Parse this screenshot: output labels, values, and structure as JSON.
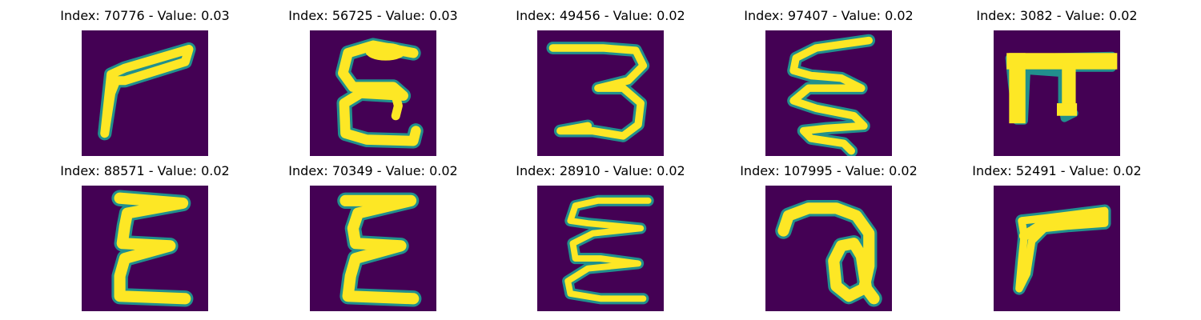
{
  "figure": {
    "colormap": {
      "background": "#440154",
      "edge": "#21908d",
      "mid": "#5ec962",
      "stroke": "#fde725"
    },
    "panels": [
      {
        "index": "70776",
        "value": "0.03",
        "title": "Index: 70776 - Value: 0.03",
        "glyph": "gamma-like stroke"
      },
      {
        "index": "56725",
        "value": "0.03",
        "title": "Index: 56725 - Value: 0.03",
        "glyph": "epsilon E"
      },
      {
        "index": "49456",
        "value": "0.02",
        "title": "Index: 49456 - Value: 0.02",
        "glyph": "3 shape"
      },
      {
        "index": "97407",
        "value": "0.02",
        "title": "Index: 97407 - Value: 0.02",
        "glyph": "zigzag sigma"
      },
      {
        "index": "3082",
        "value": "0.02",
        "title": "Index: 3082 - Value: 0.02",
        "glyph": "pi shape"
      },
      {
        "index": "88571",
        "value": "0.02",
        "title": "Index: 88571 - Value: 0.02",
        "glyph": "sigma shape"
      },
      {
        "index": "70349",
        "value": "0.02",
        "title": "Index: 70349 - Value: 0.02",
        "glyph": "sigma shape"
      },
      {
        "index": "28910",
        "value": "0.02",
        "title": "Index: 28910 - Value: 0.02",
        "glyph": "epsilon E"
      },
      {
        "index": "107995",
        "value": "0.02",
        "title": "Index: 107995 - Value: 0.02",
        "glyph": "loop a"
      },
      {
        "index": "52491",
        "value": "0.02",
        "title": "Index: 52491 - Value: 0.02",
        "glyph": "gamma-like stroke"
      }
    ]
  }
}
